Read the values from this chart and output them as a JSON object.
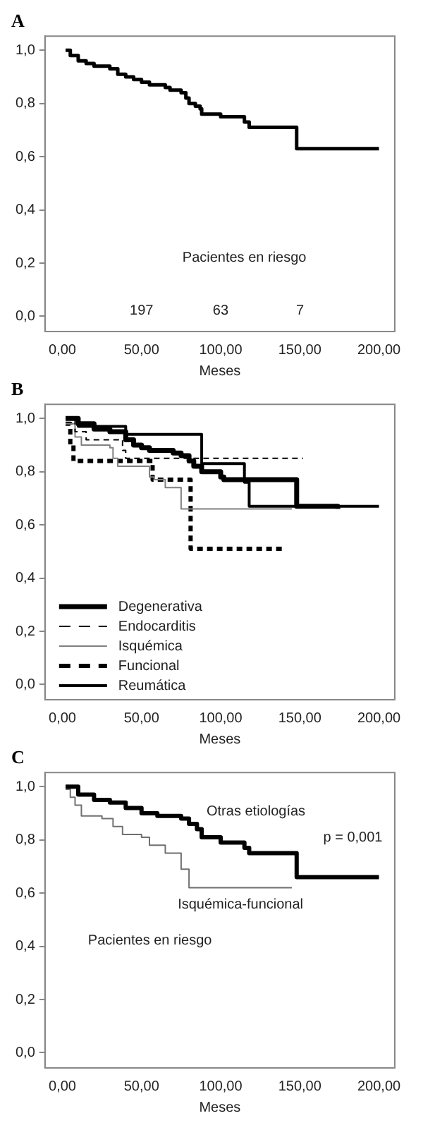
{
  "chart_data": [
    {
      "type": "step",
      "title": "A",
      "xlabel": "Meses",
      "xlim": [
        -11,
        210
      ],
      "ylim": [
        -0.057,
        1.053
      ],
      "xticks": [
        {
          "value": 0,
          "label": "0,00"
        },
        {
          "value": 50,
          "label": "50,00"
        },
        {
          "value": 100,
          "label": "100,00"
        },
        {
          "value": 150,
          "label": "150,00"
        },
        {
          "value": 200,
          "label": "200,00"
        }
      ],
      "yticks": [
        {
          "value": 0,
          "label": "0,0"
        },
        {
          "value": 0.2,
          "label": "0,2"
        },
        {
          "value": 0.4,
          "label": "0,4"
        },
        {
          "value": 0.6,
          "label": "0,6"
        },
        {
          "value": 0.8,
          "label": "0,8"
        },
        {
          "value": 1,
          "label": "1,0"
        }
      ],
      "grid": false,
      "legend": false,
      "series": [
        {
          "color": "#000000",
          "line_style": "solid",
          "x": [
            2,
            5,
            10,
            15,
            20,
            30,
            35,
            40,
            45,
            50,
            55,
            65,
            68,
            75,
            78,
            80,
            84,
            87,
            88,
            100,
            115,
            118,
            148,
            200
          ],
          "values": [
            1.0,
            0.98,
            0.96,
            0.95,
            0.94,
            0.93,
            0.91,
            0.9,
            0.89,
            0.88,
            0.87,
            0.86,
            0.85,
            0.84,
            0.82,
            0.8,
            0.79,
            0.78,
            0.76,
            0.75,
            0.73,
            0.71,
            0.63,
            0.63
          ]
        }
      ],
      "annotations": [
        "Pacientes en riesgo",
        "197",
        "63",
        "7"
      ]
    },
    {
      "type": "step",
      "title": "B",
      "xlabel": "Meses",
      "xlim": [
        -11,
        210
      ],
      "ylim": [
        -0.057,
        1.053
      ],
      "xticks": [
        {
          "value": 0,
          "label": "0,00"
        },
        {
          "value": 50,
          "label": "50,00"
        },
        {
          "value": 100,
          "label": "100,00"
        },
        {
          "value": 150,
          "label": "150,00"
        },
        {
          "value": 200,
          "label": "200,00"
        }
      ],
      "yticks": [
        {
          "value": 0,
          "label": "0,0"
        },
        {
          "value": 0.2,
          "label": "0,2"
        },
        {
          "value": 0.4,
          "label": "0,4"
        },
        {
          "value": 0.6,
          "label": "0,6"
        },
        {
          "value": 0.8,
          "label": "0,8"
        },
        {
          "value": 1,
          "label": "1,0"
        }
      ],
      "grid": false,
      "legend": "bottom left",
      "series": [
        {
          "name": "Degenerativa",
          "color": "#000000",
          "line_style": "solid",
          "x": [
            2,
            10,
            20,
            30,
            40,
            45,
            50,
            55,
            70,
            75,
            80,
            83,
            88,
            100,
            102,
            148,
            174
          ],
          "values": [
            1.0,
            0.98,
            0.96,
            0.95,
            0.92,
            0.9,
            0.89,
            0.88,
            0.87,
            0.86,
            0.84,
            0.82,
            0.8,
            0.78,
            0.77,
            0.67,
            0.66
          ]
        },
        {
          "name": "Endocarditis",
          "color": "#000000",
          "line_style": "dashed",
          "x": [
            2,
            8,
            15,
            38,
            40,
            152
          ],
          "values": [
            1.0,
            0.95,
            0.92,
            0.88,
            0.85,
            0.85
          ]
        },
        {
          "name": "Isquémica",
          "color": "#808080",
          "line_style": "solid",
          "x": [
            2,
            8,
            12,
            30,
            32,
            35,
            55,
            58,
            65,
            75,
            145
          ],
          "values": [
            0.98,
            0.93,
            0.9,
            0.89,
            0.85,
            0.82,
            0.78,
            0.77,
            0.74,
            0.66,
            0.66
          ]
        },
        {
          "name": "Funcional",
          "color": "#000000",
          "line_style": "dashed",
          "x": [
            2,
            5,
            7,
            55,
            57,
            80,
            81,
            140
          ],
          "values": [
            0.98,
            0.9,
            0.84,
            0.84,
            0.77,
            0.77,
            0.51,
            0.51
          ]
        },
        {
          "name": "Reumática",
          "color": "#000000",
          "line_style": "solid",
          "x": [
            2,
            10,
            40,
            88,
            115,
            118,
            200
          ],
          "values": [
            1.0,
            0.97,
            0.94,
            0.83,
            0.76,
            0.67,
            0.67
          ]
        }
      ]
    },
    {
      "type": "step",
      "title": "C",
      "xlabel": "Meses",
      "xlim": [
        -11,
        210
      ],
      "ylim": [
        -0.057,
        1.053
      ],
      "xticks": [
        {
          "value": 0,
          "label": "0,00"
        },
        {
          "value": 50,
          "label": "50,00"
        },
        {
          "value": 100,
          "label": "100,00"
        },
        {
          "value": 150,
          "label": "150,00"
        },
        {
          "value": 200,
          "label": "200,00"
        }
      ],
      "yticks": [
        {
          "value": 0,
          "label": "0,0"
        },
        {
          "value": 0.2,
          "label": "0,2"
        },
        {
          "value": 0.4,
          "label": "0,4"
        },
        {
          "value": 0.6,
          "label": "0,6"
        },
        {
          "value": 0.8,
          "label": "0,8"
        },
        {
          "value": 1,
          "label": "1,0"
        }
      ],
      "grid": false,
      "legend": false,
      "series": [
        {
          "name": "Otras etiologías",
          "color": "#000000",
          "line_style": "solid",
          "x": [
            2,
            10,
            20,
            30,
            40,
            50,
            60,
            75,
            80,
            85,
            88,
            100,
            115,
            118,
            148,
            200
          ],
          "values": [
            1.0,
            0.97,
            0.95,
            0.94,
            0.92,
            0.9,
            0.89,
            0.88,
            0.86,
            0.84,
            0.81,
            0.79,
            0.77,
            0.75,
            0.66,
            0.66
          ]
        },
        {
          "name": "Isquémica-funcional",
          "color": "#707070",
          "line_style": "solid",
          "x": [
            2,
            5,
            8,
            12,
            25,
            32,
            38,
            50,
            55,
            65,
            75,
            80,
            145
          ],
          "values": [
            0.99,
            0.96,
            0.93,
            0.89,
            0.88,
            0.85,
            0.82,
            0.81,
            0.78,
            0.75,
            0.69,
            0.62,
            0.62
          ]
        }
      ],
      "annotations": [
        "p = 0,001",
        "Pacientes en riesgo"
      ]
    }
  ]
}
